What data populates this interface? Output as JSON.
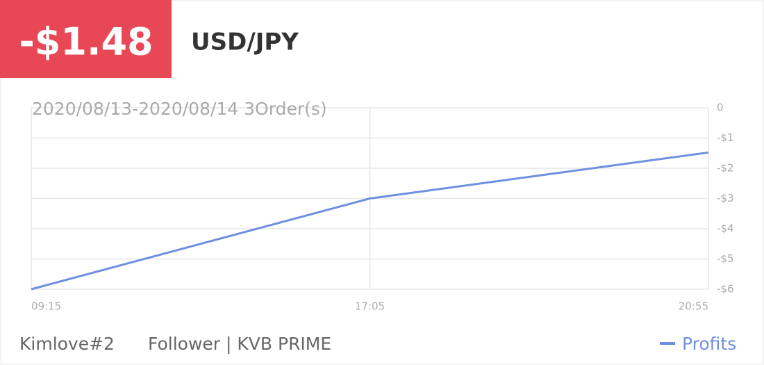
{
  "badge": "-$1.48",
  "pair": "USD/JPY",
  "chart_data": {
    "type": "line",
    "subtitle": "2020/08/13-2020/08/14 3Order(s)",
    "categories": [
      "09:15",
      "17:05",
      "20:55"
    ],
    "series": [
      {
        "name": "Profits",
        "color": "#6f8fe0",
        "values": [
          -6,
          -3,
          -1.48
        ]
      }
    ],
    "ylim": [
      -6,
      0
    ],
    "yticks": [
      0,
      {
        "value": -1,
        "label": "-$1"
      },
      {
        "value": -2,
        "label": "-$2"
      },
      {
        "value": -3,
        "label": "-$3"
      },
      {
        "value": -4,
        "label": "-$4"
      },
      {
        "value": -5,
        "label": "-$5"
      },
      {
        "value": -6,
        "label": "-$6"
      }
    ],
    "grid": true,
    "legend": "bottom-right"
  },
  "footer": {
    "account": "Kimlove#2",
    "detail": "Follower | KVB PRIME"
  }
}
